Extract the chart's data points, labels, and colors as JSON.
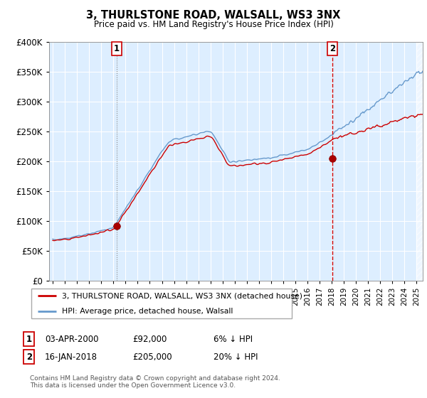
{
  "title": "3, THURLSTONE ROAD, WALSALL, WS3 3NX",
  "subtitle": "Price paid vs. HM Land Registry's House Price Index (HPI)",
  "legend_line1": "3, THURLSTONE ROAD, WALSALL, WS3 3NX (detached house)",
  "legend_line2": "HPI: Average price, detached house, Walsall",
  "annotation1_date": "03-APR-2000",
  "annotation1_price": "£92,000",
  "annotation1_note": "6% ↓ HPI",
  "annotation2_date": "16-JAN-2018",
  "annotation2_price": "£205,000",
  "annotation2_note": "20% ↓ HPI",
  "footer": "Contains HM Land Registry data © Crown copyright and database right 2024.\nThis data is licensed under the Open Government Licence v3.0.",
  "hpi_color": "#6699cc",
  "price_color": "#cc0000",
  "vline1_color": "#aaaaaa",
  "vline2_color": "#cc0000",
  "dot_color": "#aa0000",
  "bg_color": "#ddeeff",
  "ylim": [
    0,
    400000
  ],
  "yticks": [
    0,
    50000,
    100000,
    150000,
    200000,
    250000,
    300000,
    350000,
    400000
  ],
  "purchase1_year": 2000.25,
  "purchase1_value": 92000,
  "purchase2_year": 2018.04,
  "purchase2_value": 205000,
  "xmin": 1994.7,
  "xmax": 2025.5
}
